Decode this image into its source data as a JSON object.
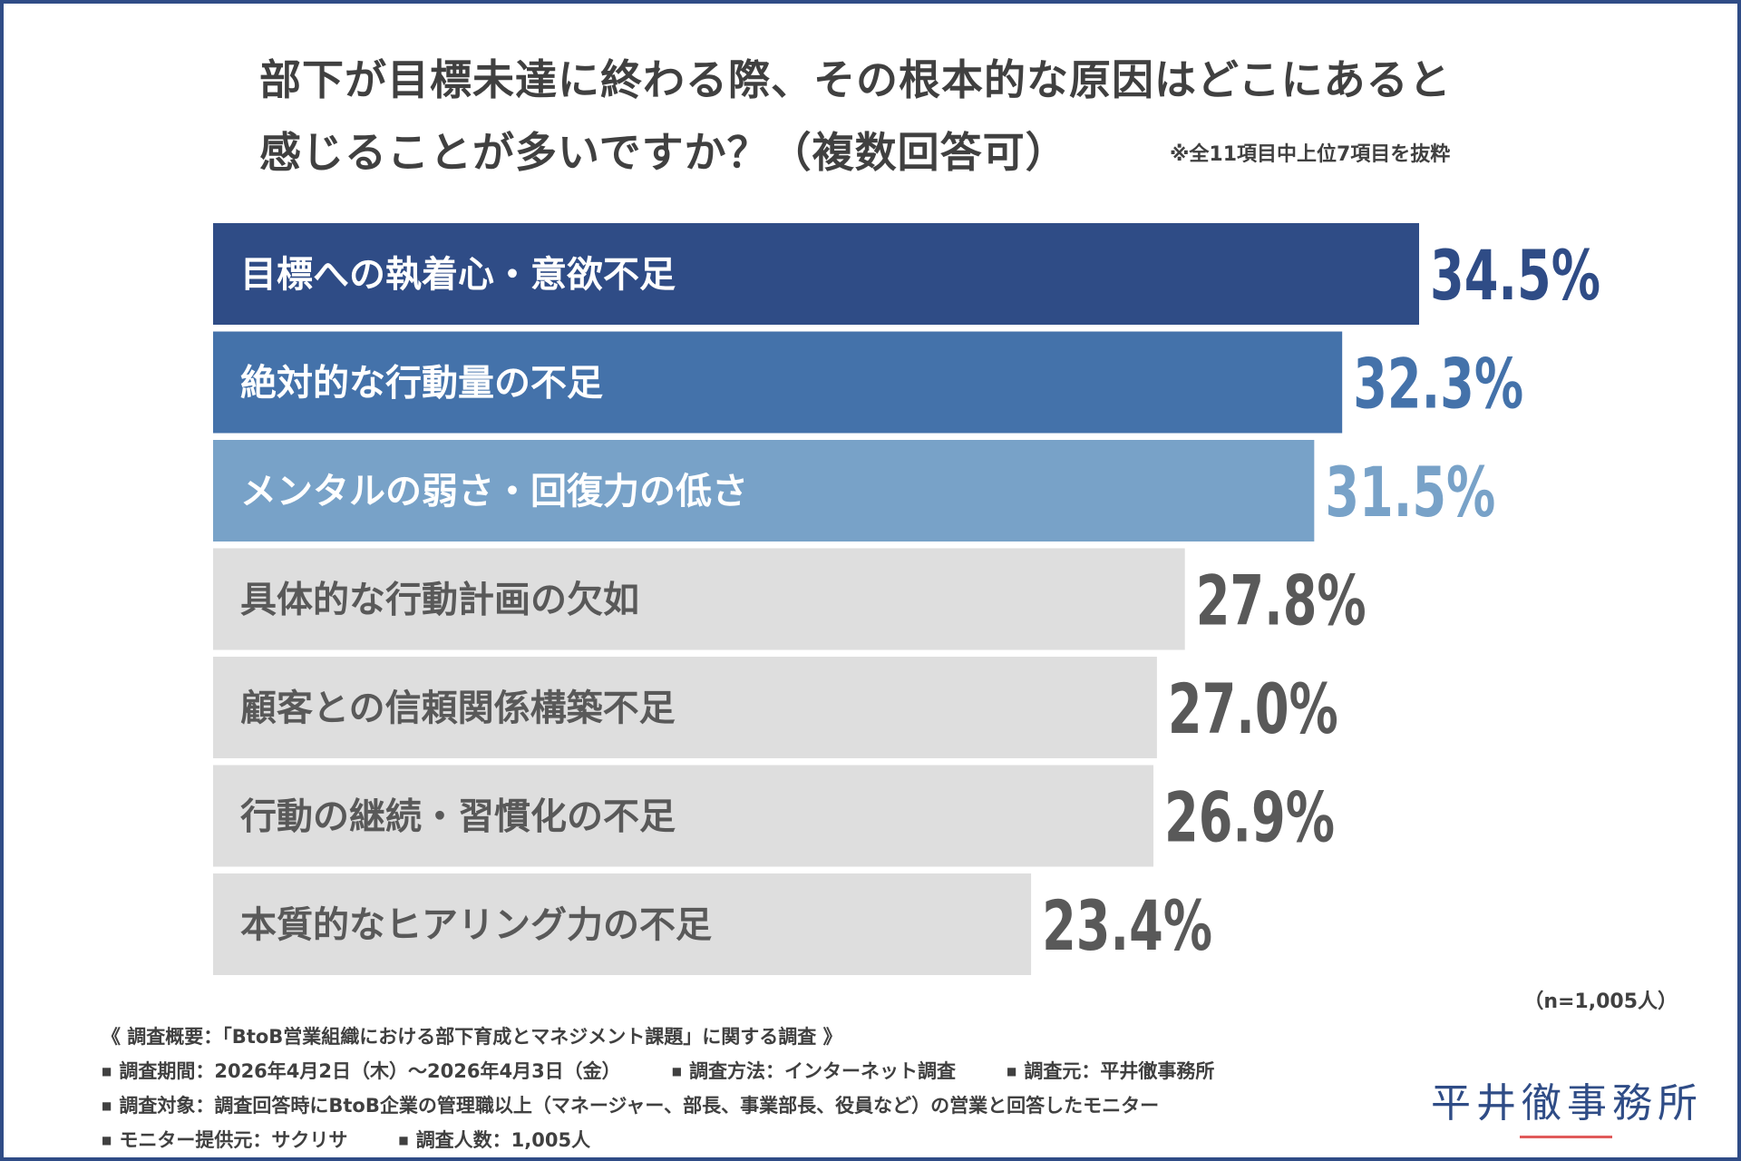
{
  "chart_data": {
    "type": "bar",
    "orientation": "horizontal",
    "title_lines": [
      "部下が目標未達に終わる際、その根本的な原因はどこにあると",
      "感じることが多いですか？（複数回答可）"
    ],
    "note": "※全11項目中上位7項目を抜粋",
    "categories": [
      "目標への執着心・意欲不足",
      "絶対的な行動量の不足",
      "メンタルの弱さ・回復力の低さ",
      "具体的な行動計画の欠如",
      "顧客との信頼関係構築不足",
      "行動の継続・習慣化の不足",
      "本質的なヒアリング力の不足"
    ],
    "values": [
      34.5,
      32.3,
      31.5,
      27.8,
      27.0,
      26.9,
      23.4
    ],
    "value_labels": [
      "34.5%",
      "32.3%",
      "31.5%",
      "27.8%",
      "27.0%",
      "26.9%",
      "23.4%"
    ],
    "bar_colors": [
      "#2f4c86",
      "#4472aa",
      "#78a2c8",
      "#dedede",
      "#dedede",
      "#dedede",
      "#dedede"
    ],
    "label_colors": [
      "#ffffff",
      "#ffffff",
      "#ffffff",
      "#595959",
      "#595959",
      "#595959",
      "#595959"
    ],
    "value_colors": [
      "#2f4c86",
      "#4472aa",
      "#78a2c8",
      "#595959",
      "#595959",
      "#595959",
      "#595959"
    ],
    "unit": "%",
    "sample_size": "（n=1,005人）"
  },
  "survey": {
    "heading": "《 調査概要：「BtoB営業組織における部下育成とマネジメント課題」に関する調査 》",
    "period": "調査期間：2026年4月2日（木）～2026年4月3日（金）",
    "method": "調査方法：インターネット調査",
    "source": "調査元：平井徹事務所",
    "target": "調査対象：調査回答時にBtoB企業の管理職以上（マネージャー、部長、事業部長、役員など）の営業と回答したモニター",
    "provider": "モニター提供元：サクリサ",
    "respondents": "調査人数：1,005人"
  },
  "logo": {
    "text": "平井徹事務所",
    "color": "#2f4c86",
    "underline_color": "#e05a5a"
  }
}
